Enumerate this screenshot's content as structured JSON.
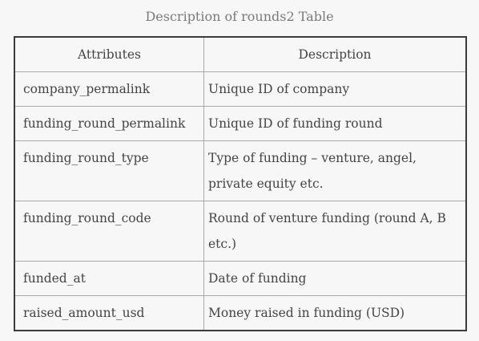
{
  "caption": "Description of rounds2 Table",
  "table": {
    "headers": [
      "Attributes",
      "Description"
    ],
    "rows": [
      {
        "attribute": "company_permalink",
        "description": "Unique ID of company"
      },
      {
        "attribute": "funding_round_permalink",
        "description": "Unique ID of funding round"
      },
      {
        "attribute": "funding_round_type",
        "description": "Type of funding – venture, angel, private equity etc."
      },
      {
        "attribute": "funding_round_code",
        "description": "Round of venture funding (round A, B etc.)"
      },
      {
        "attribute": "funded_at",
        "description": "Date of funding"
      },
      {
        "attribute": "raised_amount_usd",
        "description": "Money raised in funding (USD)"
      }
    ]
  }
}
